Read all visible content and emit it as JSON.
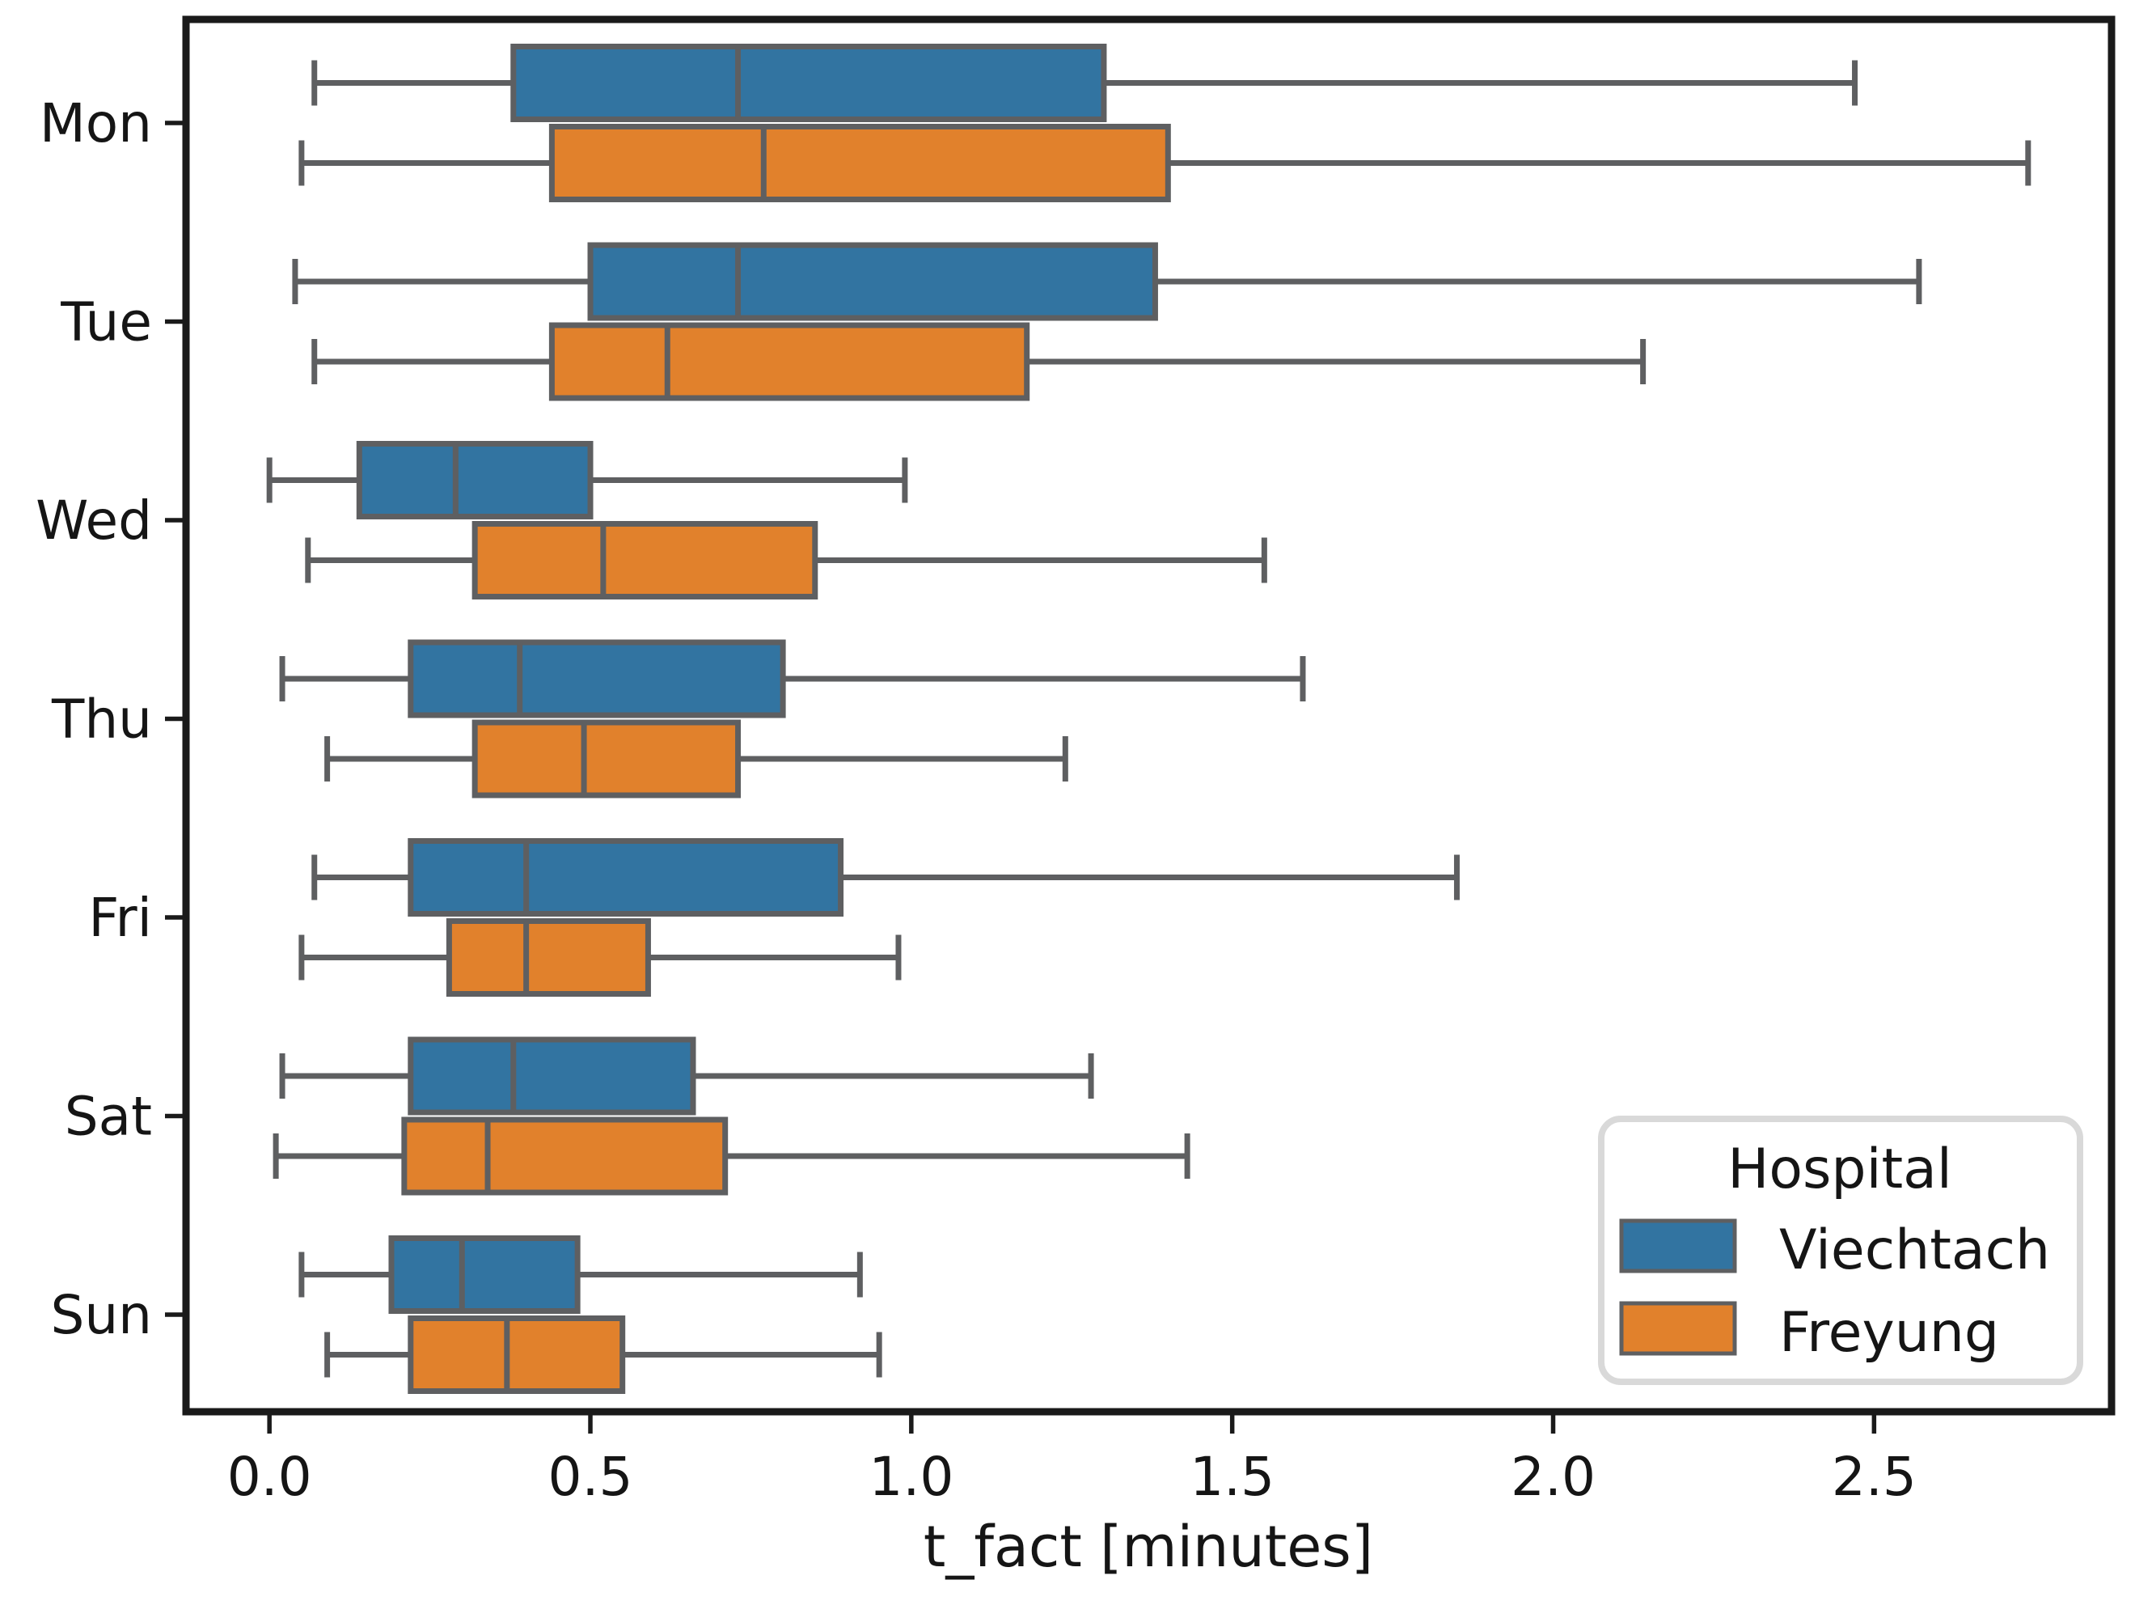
{
  "chart_data": {
    "type": "boxplot",
    "orientation": "horizontal",
    "title": "",
    "xlabel": "t_fact [minutes]",
    "ylabel": "",
    "categories": [
      "Mon",
      "Tue",
      "Wed",
      "Thu",
      "Fri",
      "Sat",
      "Sun"
    ],
    "x_tick_labels": [
      "0.0",
      "0.5",
      "1.0",
      "1.5",
      "2.0",
      "2.5"
    ],
    "x_tick_values": [
      0,
      0.5,
      1.0,
      1.5,
      2.0,
      2.5
    ],
    "xlim": [
      -0.13,
      2.87
    ],
    "grid": false,
    "legend": {
      "title": "Hospital",
      "position": "lower right",
      "entries": [
        {
          "label": "Viechtach",
          "color": "#3274A1"
        },
        {
          "label": "Freyung",
          "color": "#E1812C"
        }
      ]
    },
    "series": [
      {
        "name": "Viechtach",
        "color": "#3274A1",
        "boxes": [
          {
            "category": "Mon",
            "whislo": 0.07,
            "q1": 0.38,
            "med": 0.73,
            "q3": 1.3,
            "whishi": 2.47
          },
          {
            "category": "Tue",
            "whislo": 0.04,
            "q1": 0.5,
            "med": 0.73,
            "q3": 1.38,
            "whishi": 2.57
          },
          {
            "category": "Wed",
            "whislo": 0.0,
            "q1": 0.14,
            "med": 0.29,
            "q3": 0.5,
            "whishi": 0.99
          },
          {
            "category": "Thu",
            "whislo": 0.02,
            "q1": 0.22,
            "med": 0.39,
            "q3": 0.8,
            "whishi": 1.61
          },
          {
            "category": "Fri",
            "whislo": 0.07,
            "q1": 0.22,
            "med": 0.4,
            "q3": 0.89,
            "whishi": 1.85
          },
          {
            "category": "Sat",
            "whislo": 0.02,
            "q1": 0.22,
            "med": 0.38,
            "q3": 0.66,
            "whishi": 1.28
          },
          {
            "category": "Sun",
            "whislo": 0.05,
            "q1": 0.19,
            "med": 0.3,
            "q3": 0.48,
            "whishi": 0.92
          }
        ]
      },
      {
        "name": "Freyung",
        "color": "#E1812C",
        "boxes": [
          {
            "category": "Mon",
            "whislo": 0.05,
            "q1": 0.44,
            "med": 0.77,
            "q3": 1.4,
            "whishi": 2.74
          },
          {
            "category": "Tue",
            "whislo": 0.07,
            "q1": 0.44,
            "med": 0.62,
            "q3": 1.18,
            "whishi": 2.14
          },
          {
            "category": "Wed",
            "whislo": 0.06,
            "q1": 0.32,
            "med": 0.52,
            "q3": 0.85,
            "whishi": 1.55
          },
          {
            "category": "Thu",
            "whislo": 0.09,
            "q1": 0.32,
            "med": 0.49,
            "q3": 0.73,
            "whishi": 1.24
          },
          {
            "category": "Fri",
            "whislo": 0.05,
            "q1": 0.28,
            "med": 0.4,
            "q3": 0.59,
            "whishi": 0.98
          },
          {
            "category": "Sat",
            "whislo": 0.01,
            "q1": 0.21,
            "med": 0.34,
            "q3": 0.71,
            "whishi": 1.43
          },
          {
            "category": "Sun",
            "whislo": 0.09,
            "q1": 0.22,
            "med": 0.37,
            "q3": 0.55,
            "whishi": 0.95
          }
        ]
      }
    ],
    "colors": {
      "box_edge": "#5E5F61",
      "spine": "#1A1A1A",
      "text": "#151515",
      "legend_border": "#D9D9D9",
      "background": "#FFFFFF"
    }
  }
}
